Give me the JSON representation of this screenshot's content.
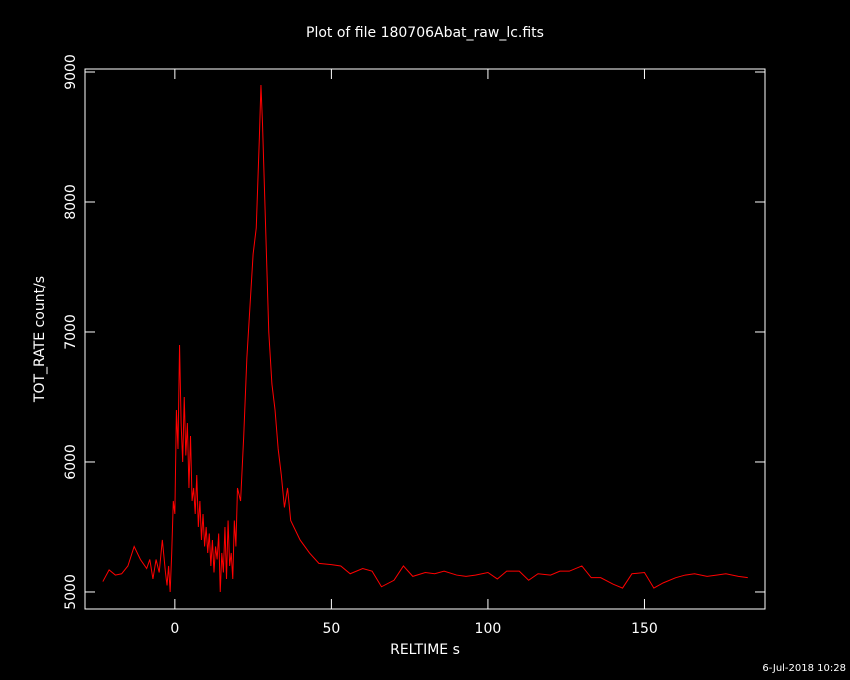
{
  "chart_data": {
    "type": "line",
    "title": "Plot of file 180706Abat_raw_lc.fits",
    "x_label": "RELTIME  s",
    "y_label": "TOT_RATE  count/s",
    "footer": "6-Jul-2018 10:28",
    "xlim": [
      -28.7,
      188.5
    ],
    "ylim": [
      4869,
      9023
    ],
    "xticks": [
      0,
      50,
      100,
      150
    ],
    "yticks": [
      5000,
      6000,
      7000,
      8000,
      9000
    ],
    "x": [
      -23,
      -21,
      -19,
      -17,
      -15,
      -13,
      -11,
      -9,
      -8,
      -7,
      -6,
      -5,
      -4,
      -3,
      -2.5,
      -2,
      -1.5,
      -1,
      -0.5,
      0,
      0.5,
      1,
      1.5,
      2,
      2.5,
      3,
      3.5,
      4,
      4.5,
      5,
      5.5,
      6,
      6.5,
      7,
      7.5,
      8,
      8.5,
      9,
      9.5,
      10,
      10.5,
      11,
      11.5,
      12,
      12.5,
      13,
      13.5,
      14,
      14.5,
      15,
      15.5,
      16,
      16.5,
      17,
      17.5,
      18,
      18.5,
      19,
      19.5,
      20,
      21,
      22,
      23,
      24,
      25,
      26,
      27,
      27.5,
      28,
      29,
      30,
      31,
      32,
      33,
      34,
      35,
      36,
      37,
      38,
      40,
      43,
      46,
      50,
      53,
      56,
      60,
      63,
      66,
      70,
      73,
      76,
      80,
      83,
      86,
      90,
      93,
      96,
      100,
      103,
      106,
      110,
      113,
      116,
      120,
      123,
      126,
      130,
      133,
      136,
      140,
      143,
      146,
      150,
      153,
      156,
      160,
      163,
      166,
      170,
      173,
      176,
      180,
      183
    ],
    "series": [
      {
        "name": "TOT_RATE",
        "color": "#ff0000",
        "values": [
          5080,
          5170,
          5130,
          5140,
          5200,
          5350,
          5250,
          5180,
          5250,
          5100,
          5250,
          5150,
          5400,
          5150,
          5050,
          5200,
          5000,
          5300,
          5700,
          5600,
          6400,
          6100,
          6900,
          6300,
          6000,
          6500,
          6050,
          6300,
          5800,
          6200,
          5700,
          5800,
          5600,
          5900,
          5500,
          5700,
          5400,
          5600,
          5350,
          5500,
          5300,
          5450,
          5200,
          5400,
          5150,
          5350,
          5250,
          5450,
          5000,
          5300,
          5150,
          5500,
          5100,
          5550,
          5200,
          5300,
          5100,
          5550,
          5350,
          5800,
          5700,
          6200,
          6800,
          7200,
          7600,
          7800,
          8500,
          8900,
          8600,
          7800,
          7000,
          6600,
          6400,
          6100,
          5900,
          5650,
          5800,
          5550,
          5500,
          5400,
          5300,
          5220,
          5210,
          5200,
          5140,
          5180,
          5160,
          5040,
          5090,
          5200,
          5120,
          5150,
          5140,
          5160,
          5130,
          5120,
          5130,
          5150,
          5100,
          5160,
          5160,
          5090,
          5140,
          5130,
          5160,
          5160,
          5200,
          5110,
          5110,
          5060,
          5030,
          5140,
          5150,
          5030,
          5070,
          5110,
          5130,
          5140,
          5120,
          5130,
          5140,
          5120,
          5110
        ]
      }
    ]
  }
}
